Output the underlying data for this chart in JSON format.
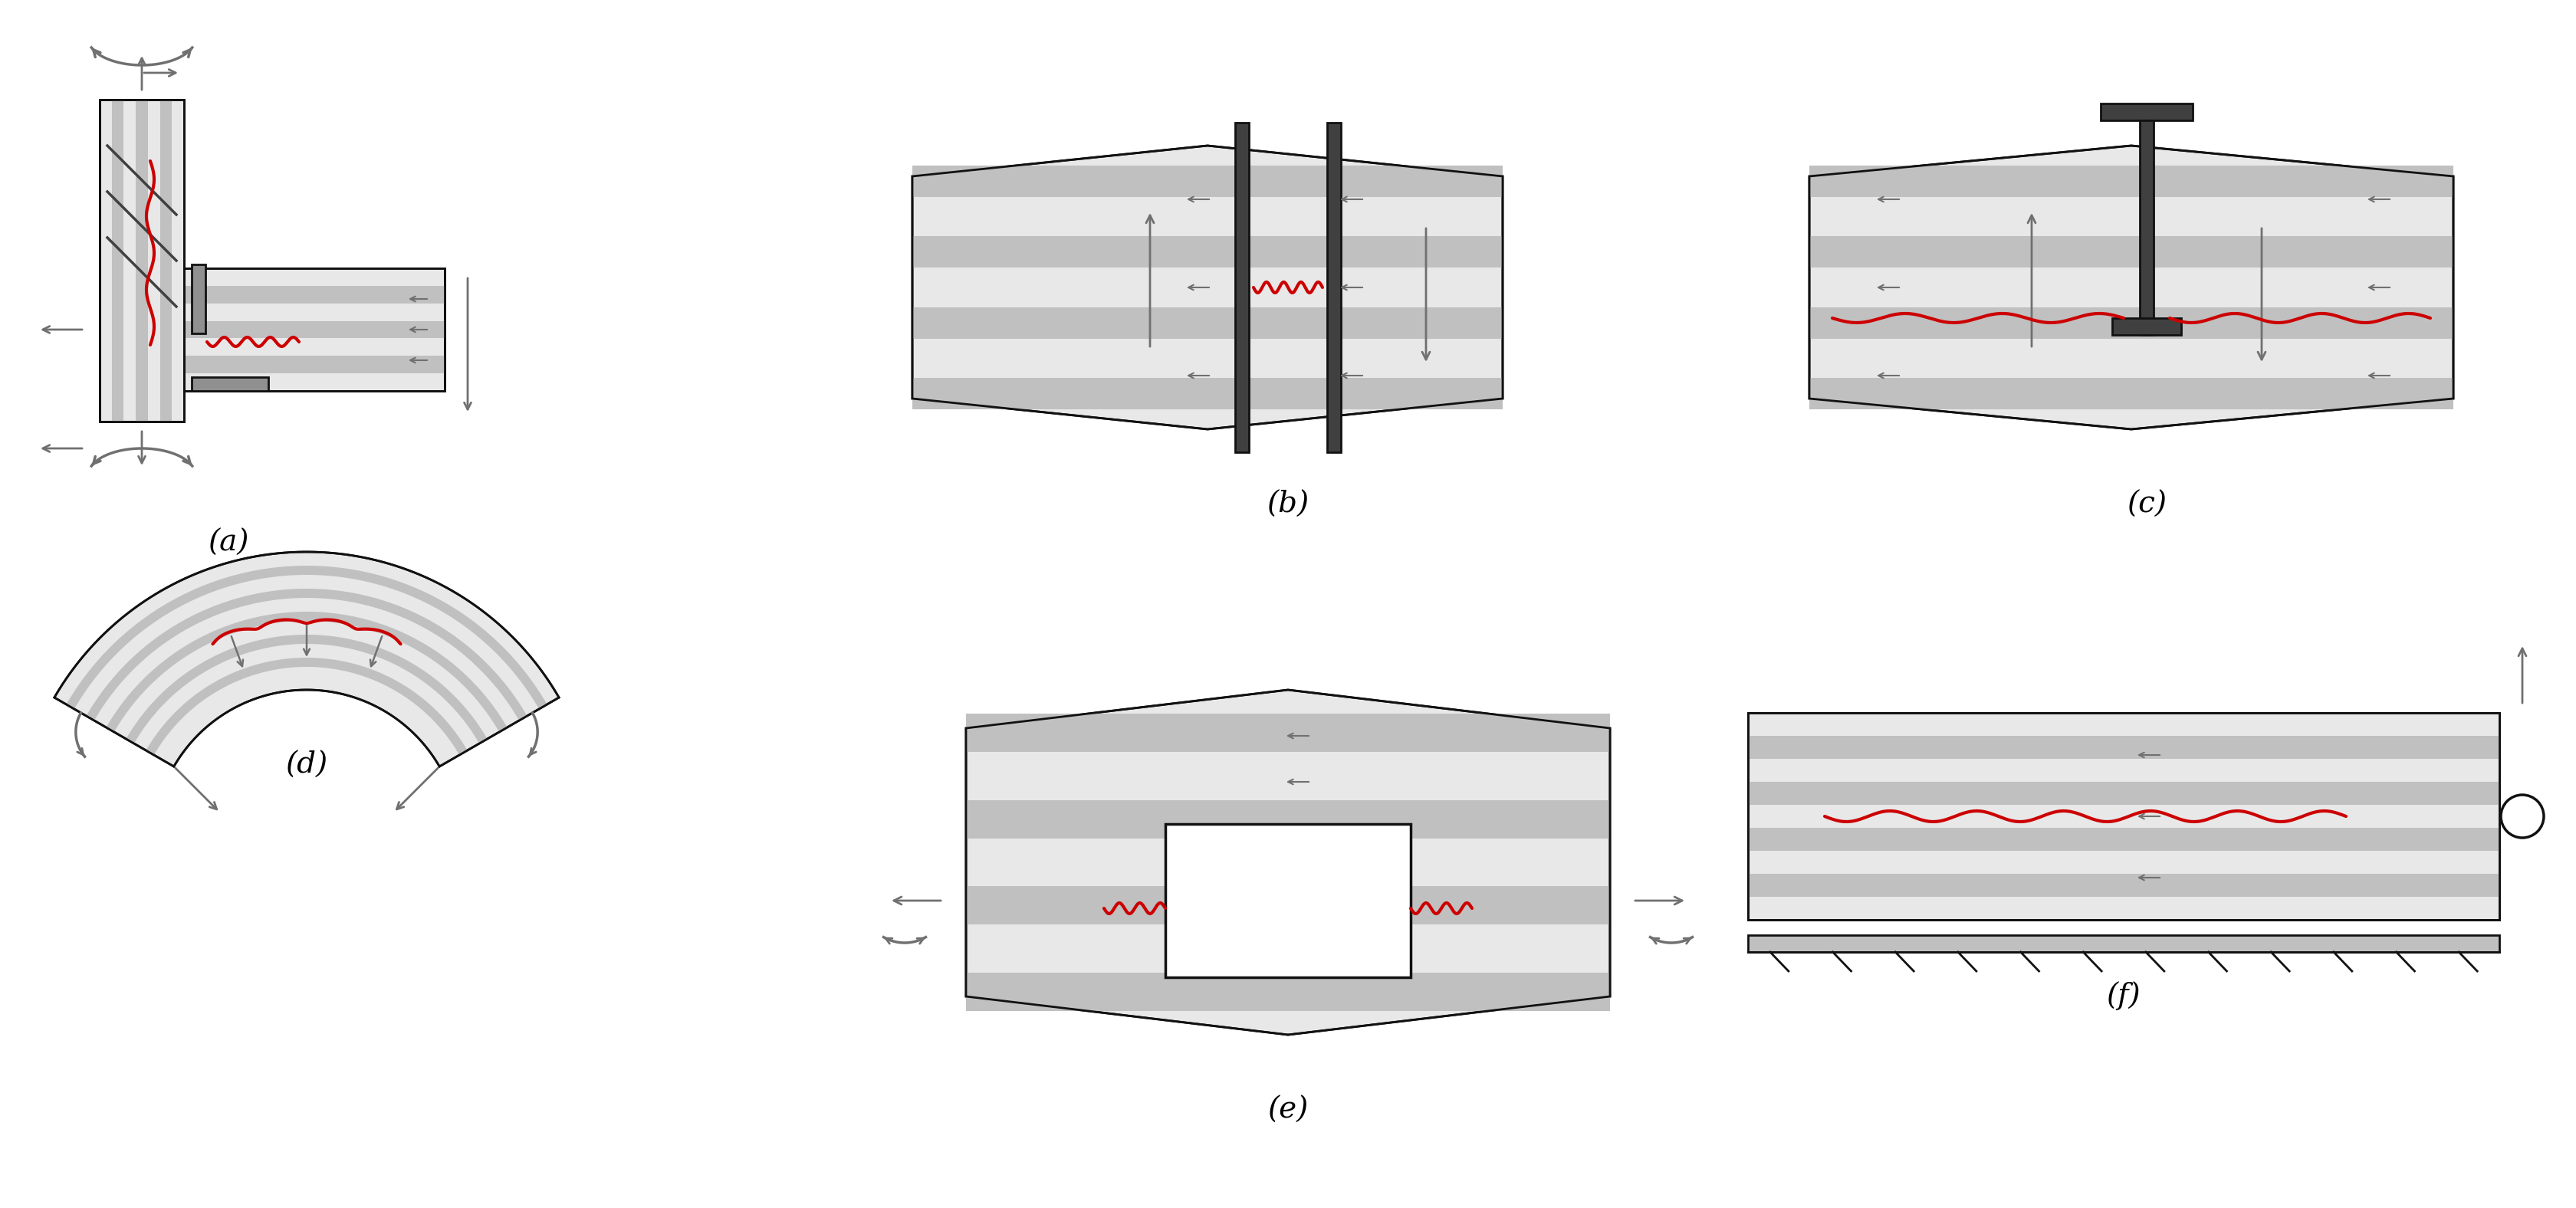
{
  "background_color": "#ffffff",
  "fig_width": 33.6,
  "fig_height": 15.76,
  "labels": [
    "(a)",
    "(b)",
    "(c)",
    "(d)",
    "(e)",
    "(f)"
  ],
  "wood_light": "#e8e8e8",
  "wood_dark": "#c0c0c0",
  "steel_color": "#404040",
  "steel_light": "#909090",
  "red_color": "#cc0000",
  "arrow_color": "#707070",
  "line_color": "#111111",
  "lw_main": 2.0,
  "lw_bolt": 2.5,
  "lw_arrow": 2.0
}
